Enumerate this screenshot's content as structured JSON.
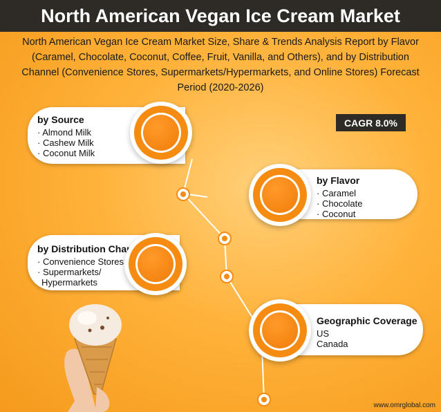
{
  "title": "North American Vegan Ice Cream Market",
  "subtitle": "North American Vegan Ice Cream Market Size, Share & Trends Analysis Report by Flavor (Caramel, Chocolate, Coconut, Coffee, Fruit, Vanilla, and Others), and by Distribution Channel (Convenience Stores, Supermarkets/Hypermarkets, and Online Stores) Forecast Period (2020-2026)",
  "cagr": "CAGR 8.0%",
  "source": {
    "title": "by Source",
    "items": [
      "· Almond Milk",
      "· Cashew Milk",
      "· Coconut Milk"
    ]
  },
  "flavor": {
    "title": "by Flavor",
    "items": [
      "· Caramel",
      "· Chocolate",
      "· Coconut"
    ]
  },
  "distribution": {
    "title": "by Distribution Channel",
    "items": [
      "· Convenience Stores",
      "· Supermarkets/",
      "Hypermarkets"
    ]
  },
  "geography": {
    "title": "Geographic Coverage",
    "items": [
      "US",
      "Canada"
    ]
  },
  "footer": "www.omrglobal.com",
  "colors": {
    "accent": "#f58b10",
    "dark": "#2e2a26"
  }
}
